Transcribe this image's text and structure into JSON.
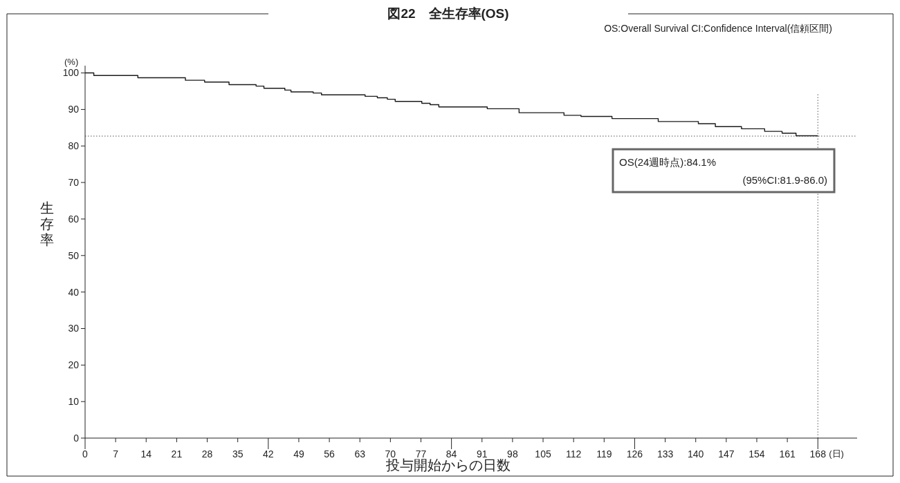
{
  "chart_data": {
    "type": "step",
    "title": "図22　全生存率(OS)",
    "xlabel": "投与開始からの日数",
    "ylabel": "生存率",
    "annotations": [
      "(%)",
      "(日)",
      "OS:Overall Survival  CI:Confidence Interval(信頼区間)",
      "OS(24週時点):84.1%",
      "(95%CI:81.9-86.0)"
    ],
    "series": [
      {
        "color": "#1a1a1a",
        "x": [
          0,
          2.0,
          12.1,
          23.0,
          27.4,
          33.0,
          39.2,
          41.0,
          45.8,
          47.2,
          52.3,
          54.2,
          64.2,
          67.0,
          69.3,
          71.1,
          77.2,
          79.1,
          81.1,
          92.2,
          99.5,
          109.8,
          113.7,
          120.8,
          131.4,
          140.6,
          144.5,
          150.5,
          155.8,
          159.8,
          163.0,
          168
        ],
        "values": [
          100,
          99.3,
          98.7,
          98.0,
          97.5,
          96.8,
          96.4,
          95.8,
          95.3,
          94.8,
          94.5,
          94.0,
          93.6,
          93.2,
          92.8,
          92.2,
          91.7,
          91.3,
          90.7,
          90.2,
          89.1,
          88.4,
          88.1,
          87.5,
          86.7,
          86.1,
          85.3,
          84.7,
          84.0,
          83.5,
          82.8,
          82.8
        ]
      }
    ],
    "xlim": [
      0,
      177
    ],
    "ylim": [
      0,
      102
    ],
    "xticks": [
      0,
      7,
      14,
      21,
      28,
      35,
      42,
      49,
      56,
      63,
      70,
      77,
      84,
      91,
      98,
      105,
      112,
      119,
      126,
      133,
      140,
      147,
      154,
      161,
      168
    ],
    "yticks": [
      0,
      10,
      20,
      30,
      40,
      50,
      60,
      70,
      80,
      90,
      100
    ],
    "ref_lines": [
      {
        "axis": "y",
        "value": 82.7,
        "line_style": "dotted",
        "color": "#555555"
      },
      {
        "axis": "x",
        "value": 168,
        "line_style": "dotted",
        "color": "#555555"
      }
    ],
    "grid": false,
    "marker": "none",
    "line_style": "solid"
  }
}
